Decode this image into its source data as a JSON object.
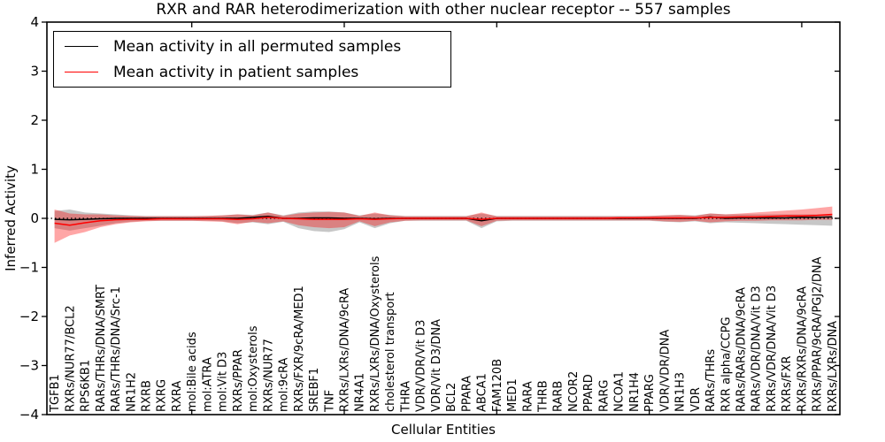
{
  "chart_data": {
    "type": "line",
    "title": "RXR and RAR heterodimerization with other nuclear receptor -- 557 samples",
    "xlabel": "Cellular Entities",
    "ylabel": "Inferred Activity",
    "ylim": [
      -4,
      4
    ],
    "yticks": [
      4,
      3,
      2,
      1,
      0,
      -1,
      -2,
      -3,
      -4
    ],
    "ytick_labels": [
      "4",
      "3",
      "2",
      "1",
      "0",
      "−1",
      "−2",
      "−3",
      "−4"
    ],
    "x_tick_indices": [
      9,
      19,
      29,
      39,
      49
    ],
    "grid": false,
    "legend": {
      "position": "upper left",
      "entries": [
        {
          "label": "Mean activity in all permuted samples",
          "color": "#000000"
        },
        {
          "label": "Mean activity in patient samples",
          "color": "#ff0000"
        }
      ]
    },
    "zero_line": {
      "y": 0,
      "style": "dotted",
      "color": "#000000"
    },
    "categories": [
      "TGFB1",
      "RXRs/NUR77/BCL2",
      "RPS6KB1",
      "RARs/THRs/DNA/SMRT",
      "RARs/THRs/DNA/Src-1",
      "NR1H2",
      "RXRB",
      "RXRG",
      "RXRA",
      "mol:Bile acids",
      "mol:ATRA",
      "mol:Vit D3",
      "RXRs/PPAR",
      "mol:Oxysterols",
      "RXRs/NUR77",
      "mol:9cRA",
      "RXRs/FXR/9cRA/MED1",
      "SREBF1",
      "TNF",
      "RXRs/LXRs/DNA/9cRA",
      "NR4A1",
      "RXRs/LXRs/DNA/Oxysterols",
      "cholesterol transport",
      "THRA",
      "VDR/VDR/Vit D3",
      "VDR/Vit D3/DNA",
      "BCL2",
      "PPARA",
      "ABCA1",
      "FAM120B",
      "MED1",
      "RARA",
      "THRB",
      "RARB",
      "NCOR2",
      "PPARD",
      "RARG",
      "NCOA1",
      "NR1H4",
      "PPARG",
      "VDR/VDR/DNA",
      "NR1H3",
      "VDR",
      "RARs/THRs",
      "RXR alpha/CCPG",
      "RARs/RARs/DNA/9cRA",
      "RARs/VDR/DNA/Vit D3",
      "RXRs/VDR/DNA/Vit D3",
      "RXRs/FXR",
      "RXRs/RXRs/DNA/9cRA",
      "RXRs/PPAR/9cRA/PGJ2/DNA",
      "RXRs/LXRs/DNA"
    ],
    "series": [
      {
        "name": "Mean activity in all permuted samples",
        "id": "permuted",
        "color": "#000000",
        "values": [
          -0.02,
          -0.03,
          -0.02,
          -0.01,
          0,
          0,
          0,
          0,
          0,
          0,
          0,
          0,
          0,
          0.02,
          0.04,
          0,
          0,
          0.01,
          0.01,
          0,
          0,
          -0.01,
          0,
          0,
          0,
          0,
          0,
          0,
          -0.05,
          0,
          0,
          0,
          0,
          0,
          0,
          0,
          0,
          0,
          0,
          0,
          0,
          0,
          0,
          0.03,
          0,
          0.01,
          0.01,
          0.01,
          0.01,
          0.02,
          0.02,
          0.03
        ],
        "band": {
          "color": "rgba(0,0,0,0.22)",
          "lower": [
            -0.2,
            -0.25,
            -0.2,
            -0.15,
            -0.1,
            -0.07,
            -0.05,
            -0.05,
            -0.05,
            -0.05,
            -0.05,
            -0.06,
            -0.1,
            -0.08,
            -0.12,
            -0.07,
            -0.2,
            -0.26,
            -0.28,
            -0.22,
            -0.08,
            -0.2,
            -0.1,
            -0.05,
            -0.05,
            -0.05,
            -0.05,
            -0.05,
            -0.2,
            -0.06,
            -0.05,
            -0.05,
            -0.05,
            -0.05,
            -0.05,
            -0.05,
            -0.05,
            -0.05,
            -0.05,
            -0.05,
            -0.07,
            -0.08,
            -0.06,
            -0.1,
            -0.08,
            -0.09,
            -0.1,
            -0.11,
            -0.12,
            -0.13,
            -0.14,
            -0.15
          ],
          "upper": [
            0.15,
            0.18,
            0.12,
            0.1,
            0.08,
            0.06,
            0.05,
            0.05,
            0.05,
            0.05,
            0.05,
            0.06,
            0.08,
            0.07,
            0.12,
            0.06,
            0.12,
            0.14,
            0.14,
            0.12,
            0.06,
            0.1,
            0.07,
            0.05,
            0.05,
            0.05,
            0.05,
            0.05,
            0.1,
            0.05,
            0.05,
            0.05,
            0.05,
            0.05,
            0.05,
            0.05,
            0.05,
            0.05,
            0.05,
            0.05,
            0.06,
            0.07,
            0.06,
            0.1,
            0.08,
            0.08,
            0.08,
            0.08,
            0.08,
            0.08,
            0.08,
            0.08
          ]
        }
      },
      {
        "name": "Mean activity in patient samples",
        "id": "patient",
        "color": "#ff0000",
        "values": [
          -0.1,
          -0.14,
          -0.09,
          -0.05,
          -0.03,
          -0.02,
          -0.02,
          -0.01,
          -0.01,
          -0.01,
          -0.01,
          -0.01,
          -0.02,
          -0.01,
          0.02,
          0,
          -0.01,
          -0.02,
          -0.02,
          -0.02,
          -0.01,
          -0.02,
          -0.01,
          0,
          0,
          0,
          0,
          0,
          -0.02,
          0,
          0,
          0,
          0,
          0,
          0,
          0,
          0,
          0.01,
          0.01,
          0.01,
          0.01,
          0.01,
          0.01,
          0.02,
          0.02,
          0.03,
          0.03,
          0.04,
          0.05,
          0.05,
          0.06,
          0.08
        ],
        "band": {
          "color": "rgba(255,0,0,0.35)",
          "lower": [
            -0.5,
            -0.35,
            -0.28,
            -0.18,
            -0.12,
            -0.08,
            -0.06,
            -0.05,
            -0.05,
            -0.05,
            -0.06,
            -0.07,
            -0.12,
            -0.07,
            -0.1,
            -0.06,
            -0.14,
            -0.18,
            -0.2,
            -0.18,
            -0.06,
            -0.16,
            -0.08,
            -0.05,
            -0.04,
            -0.04,
            -0.04,
            -0.04,
            -0.16,
            -0.05,
            -0.04,
            -0.04,
            -0.04,
            -0.04,
            -0.04,
            -0.04,
            -0.04,
            -0.04,
            -0.04,
            -0.04,
            -0.06,
            -0.07,
            -0.05,
            -0.08,
            -0.06,
            -0.05,
            -0.05,
            -0.04,
            -0.04,
            -0.04,
            -0.03,
            -0.03
          ],
          "upper": [
            0.18,
            0.1,
            0.08,
            0.08,
            0.06,
            0.05,
            0.04,
            0.04,
            0.04,
            0.04,
            0.05,
            0.06,
            0.08,
            0.06,
            0.12,
            0.05,
            0.1,
            0.12,
            0.13,
            0.12,
            0.05,
            0.12,
            0.06,
            0.04,
            0.04,
            0.04,
            0.04,
            0.04,
            0.12,
            0.04,
            0.04,
            0.04,
            0.04,
            0.04,
            0.04,
            0.04,
            0.04,
            0.04,
            0.04,
            0.05,
            0.06,
            0.07,
            0.05,
            0.1,
            0.08,
            0.1,
            0.12,
            0.14,
            0.16,
            0.18,
            0.21,
            0.24
          ]
        }
      }
    ]
  }
}
